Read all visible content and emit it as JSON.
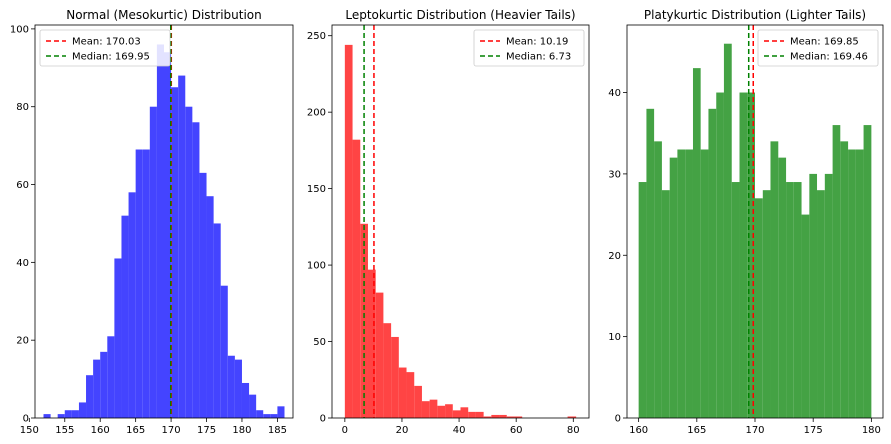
{
  "chart_data": [
    {
      "type": "bar",
      "title": "Normal (Mesokurtic) Distribution",
      "xlabel": "",
      "ylabel": "",
      "xlim": [
        150.8,
        187.2
      ],
      "ylim": [
        0,
        101
      ],
      "xticks": [
        150,
        155,
        160,
        165,
        170,
        175,
        180,
        185
      ],
      "yticks": [
        0,
        20,
        40,
        60,
        80,
        100
      ],
      "color": "#4444ff",
      "bins": [
        [
          152,
          153,
          1
        ],
        [
          154,
          155,
          1
        ],
        [
          155,
          156,
          2
        ],
        [
          156,
          157,
          2
        ],
        [
          157,
          158,
          4
        ],
        [
          158,
          159,
          11
        ],
        [
          159,
          160,
          15
        ],
        [
          160,
          161,
          17
        ],
        [
          161,
          162,
          21
        ],
        [
          162,
          163,
          41
        ],
        [
          163,
          164,
          52
        ],
        [
          164,
          165,
          58
        ],
        [
          165,
          166,
          69
        ],
        [
          166,
          167,
          69
        ],
        [
          167,
          168,
          80
        ],
        [
          168,
          169,
          96
        ],
        [
          169,
          170,
          94
        ],
        [
          170,
          171,
          85
        ],
        [
          171,
          172,
          88
        ],
        [
          172,
          173,
          80
        ],
        [
          173,
          174,
          76
        ],
        [
          174,
          175,
          63
        ],
        [
          175,
          176,
          57
        ],
        [
          176,
          177,
          50
        ],
        [
          177,
          178,
          34
        ],
        [
          178,
          179,
          16
        ],
        [
          179,
          180,
          15
        ],
        [
          180,
          181,
          9
        ],
        [
          181,
          182,
          6
        ],
        [
          182,
          183,
          2
        ],
        [
          183,
          184,
          1
        ],
        [
          184,
          185,
          1
        ],
        [
          185,
          186,
          3
        ]
      ],
      "mean": 170.03,
      "median": 169.95,
      "legend": [
        "Mean: 170.03",
        "Median: 169.95"
      ],
      "legend_position": "top-left"
    },
    {
      "type": "bar",
      "title": "Leptokurtic Distribution (Heavier Tails)",
      "xlabel": "",
      "ylabel": "",
      "xlim": [
        -4.5,
        85.5
      ],
      "ylim": [
        0,
        257
      ],
      "xticks": [
        0,
        20,
        40,
        60,
        80
      ],
      "yticks": [
        0,
        50,
        100,
        150,
        200,
        250
      ],
      "color": "#ff4444",
      "bins": [
        [
          0,
          2.7,
          244
        ],
        [
          2.7,
          5.4,
          182
        ],
        [
          5.4,
          8.1,
          127
        ],
        [
          8.1,
          10.8,
          97
        ],
        [
          10.8,
          13.5,
          82
        ],
        [
          13.5,
          16.2,
          62
        ],
        [
          16.2,
          18.9,
          53
        ],
        [
          18.9,
          21.6,
          33
        ],
        [
          21.6,
          24.3,
          30
        ],
        [
          24.3,
          27,
          21
        ],
        [
          27,
          29.7,
          11
        ],
        [
          29.7,
          32.4,
          12
        ],
        [
          32.4,
          35.1,
          8
        ],
        [
          35.1,
          37.8,
          9
        ],
        [
          37.8,
          40.5,
          5
        ],
        [
          40.5,
          43.2,
          7
        ],
        [
          43.2,
          45.9,
          4
        ],
        [
          45.9,
          48.6,
          4
        ],
        [
          48.6,
          51.3,
          1
        ],
        [
          51.3,
          54,
          2
        ],
        [
          54,
          56.7,
          2
        ],
        [
          56.7,
          59.4,
          1
        ],
        [
          59.4,
          62.1,
          1
        ],
        [
          78,
          81,
          1
        ]
      ],
      "mean": 10.19,
      "median": 6.73,
      "legend": [
        "Mean: 10.19",
        "Median: 6.73"
      ],
      "legend_position": "top-right"
    },
    {
      "type": "bar",
      "title": "Platykurtic Distribution (Lighter Tails)",
      "xlabel": "",
      "ylabel": "",
      "xlim": [
        159,
        181
      ],
      "ylim": [
        0,
        48.3
      ],
      "xticks": [
        160,
        165,
        170,
        175,
        180
      ],
      "yticks": [
        0,
        10,
        20,
        30,
        40
      ],
      "color": "#44a244",
      "bins": [
        [
          160,
          160.67,
          29
        ],
        [
          160.67,
          161.33,
          38
        ],
        [
          161.33,
          162,
          34
        ],
        [
          162,
          162.67,
          28
        ],
        [
          162.67,
          163.33,
          32
        ],
        [
          163.33,
          164,
          33
        ],
        [
          164,
          164.67,
          33
        ],
        [
          164.67,
          165.33,
          43
        ],
        [
          165.33,
          166,
          33
        ],
        [
          166,
          166.67,
          38
        ],
        [
          166.67,
          167.33,
          40
        ],
        [
          167.33,
          168,
          46
        ],
        [
          168,
          168.67,
          29
        ],
        [
          168.67,
          169.33,
          40
        ],
        [
          169.33,
          170,
          40
        ],
        [
          170,
          170.67,
          27
        ],
        [
          170.67,
          171.33,
          28
        ],
        [
          171.33,
          172,
          34
        ],
        [
          172,
          172.67,
          32
        ],
        [
          172.67,
          173.33,
          29
        ],
        [
          173.33,
          174,
          29
        ],
        [
          174,
          174.67,
          25
        ],
        [
          174.67,
          175.33,
          30
        ],
        [
          175.33,
          176,
          28
        ],
        [
          176,
          176.67,
          30
        ],
        [
          176.67,
          177.33,
          36
        ],
        [
          177.33,
          178,
          34
        ],
        [
          178,
          178.67,
          33
        ],
        [
          178.67,
          179.33,
          33
        ],
        [
          179.33,
          180,
          36
        ]
      ],
      "mean": 169.85,
      "median": 169.46,
      "legend": [
        "Mean: 169.85",
        "Median: 169.46"
      ],
      "legend_position": "top-right"
    }
  ],
  "colors": {
    "mean_line": "#ff0000",
    "median_line": "#008000",
    "axis": "#000000"
  }
}
